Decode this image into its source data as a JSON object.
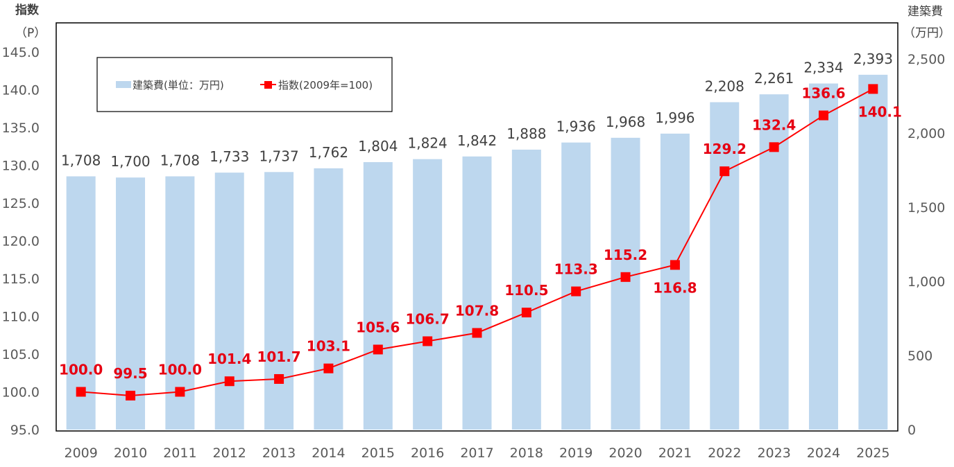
{
  "chart_data": {
    "type": "bar+line",
    "categories": [
      "2009",
      "2010",
      "2011",
      "2012",
      "2013",
      "2014",
      "2015",
      "2016",
      "2017",
      "2018",
      "2019",
      "2020",
      "2021",
      "2022",
      "2023",
      "2024",
      "2025"
    ],
    "series": [
      {
        "name": "建築費(単位：万円)",
        "type": "bar",
        "axis": "right",
        "color": "#bdd7ee",
        "values": [
          1708,
          1700,
          1708,
          1733,
          1737,
          1762,
          1804,
          1824,
          1842,
          1888,
          1936,
          1968,
          1996,
          2208,
          2261,
          2334,
          2393
        ],
        "labels": [
          "1,708",
          "1,700",
          "1,708",
          "1,733",
          "1,737",
          "1,762",
          "1,804",
          "1,824",
          "1,842",
          "1,888",
          "1,936",
          "1,968",
          "1,996",
          "2,208",
          "2,261",
          "2,334",
          "2,393"
        ]
      },
      {
        "name": "指数(2009年=100)",
        "type": "line",
        "axis": "left",
        "color": "#ff0000",
        "values": [
          100.0,
          99.5,
          100.0,
          101.4,
          101.7,
          103.1,
          105.6,
          106.7,
          107.8,
          110.5,
          113.3,
          115.2,
          116.8,
          129.2,
          132.4,
          136.6,
          140.1
        ],
        "labels": [
          "100.0",
          "99.5",
          "100.0",
          "101.4",
          "101.7",
          "103.1",
          "105.6",
          "106.7",
          "107.8",
          "110.5",
          "113.3",
          "115.2",
          "116.8",
          "129.2",
          "132.4",
          "136.6",
          "140.1"
        ]
      }
    ],
    "left_axis": {
      "title": "指数",
      "unit": "（P）",
      "ylim": [
        95,
        145
      ],
      "ticks": [
        "95.0",
        "100.0",
        "105.0",
        "110.0",
        "115.0",
        "120.0",
        "125.0",
        "130.0",
        "135.0",
        "140.0",
        "145.0"
      ]
    },
    "right_axis": {
      "title": "建築費",
      "unit": "（万円）",
      "ylim": [
        0,
        2500
      ],
      "ticks": [
        "0",
        "500",
        "1,000",
        "1,500",
        "2,000",
        "2,500"
      ]
    },
    "legend": {
      "placement": "top-left",
      "entries": [
        "建築費(単位：万円)",
        "指数(2009年=100)"
      ]
    },
    "grid": false
  }
}
